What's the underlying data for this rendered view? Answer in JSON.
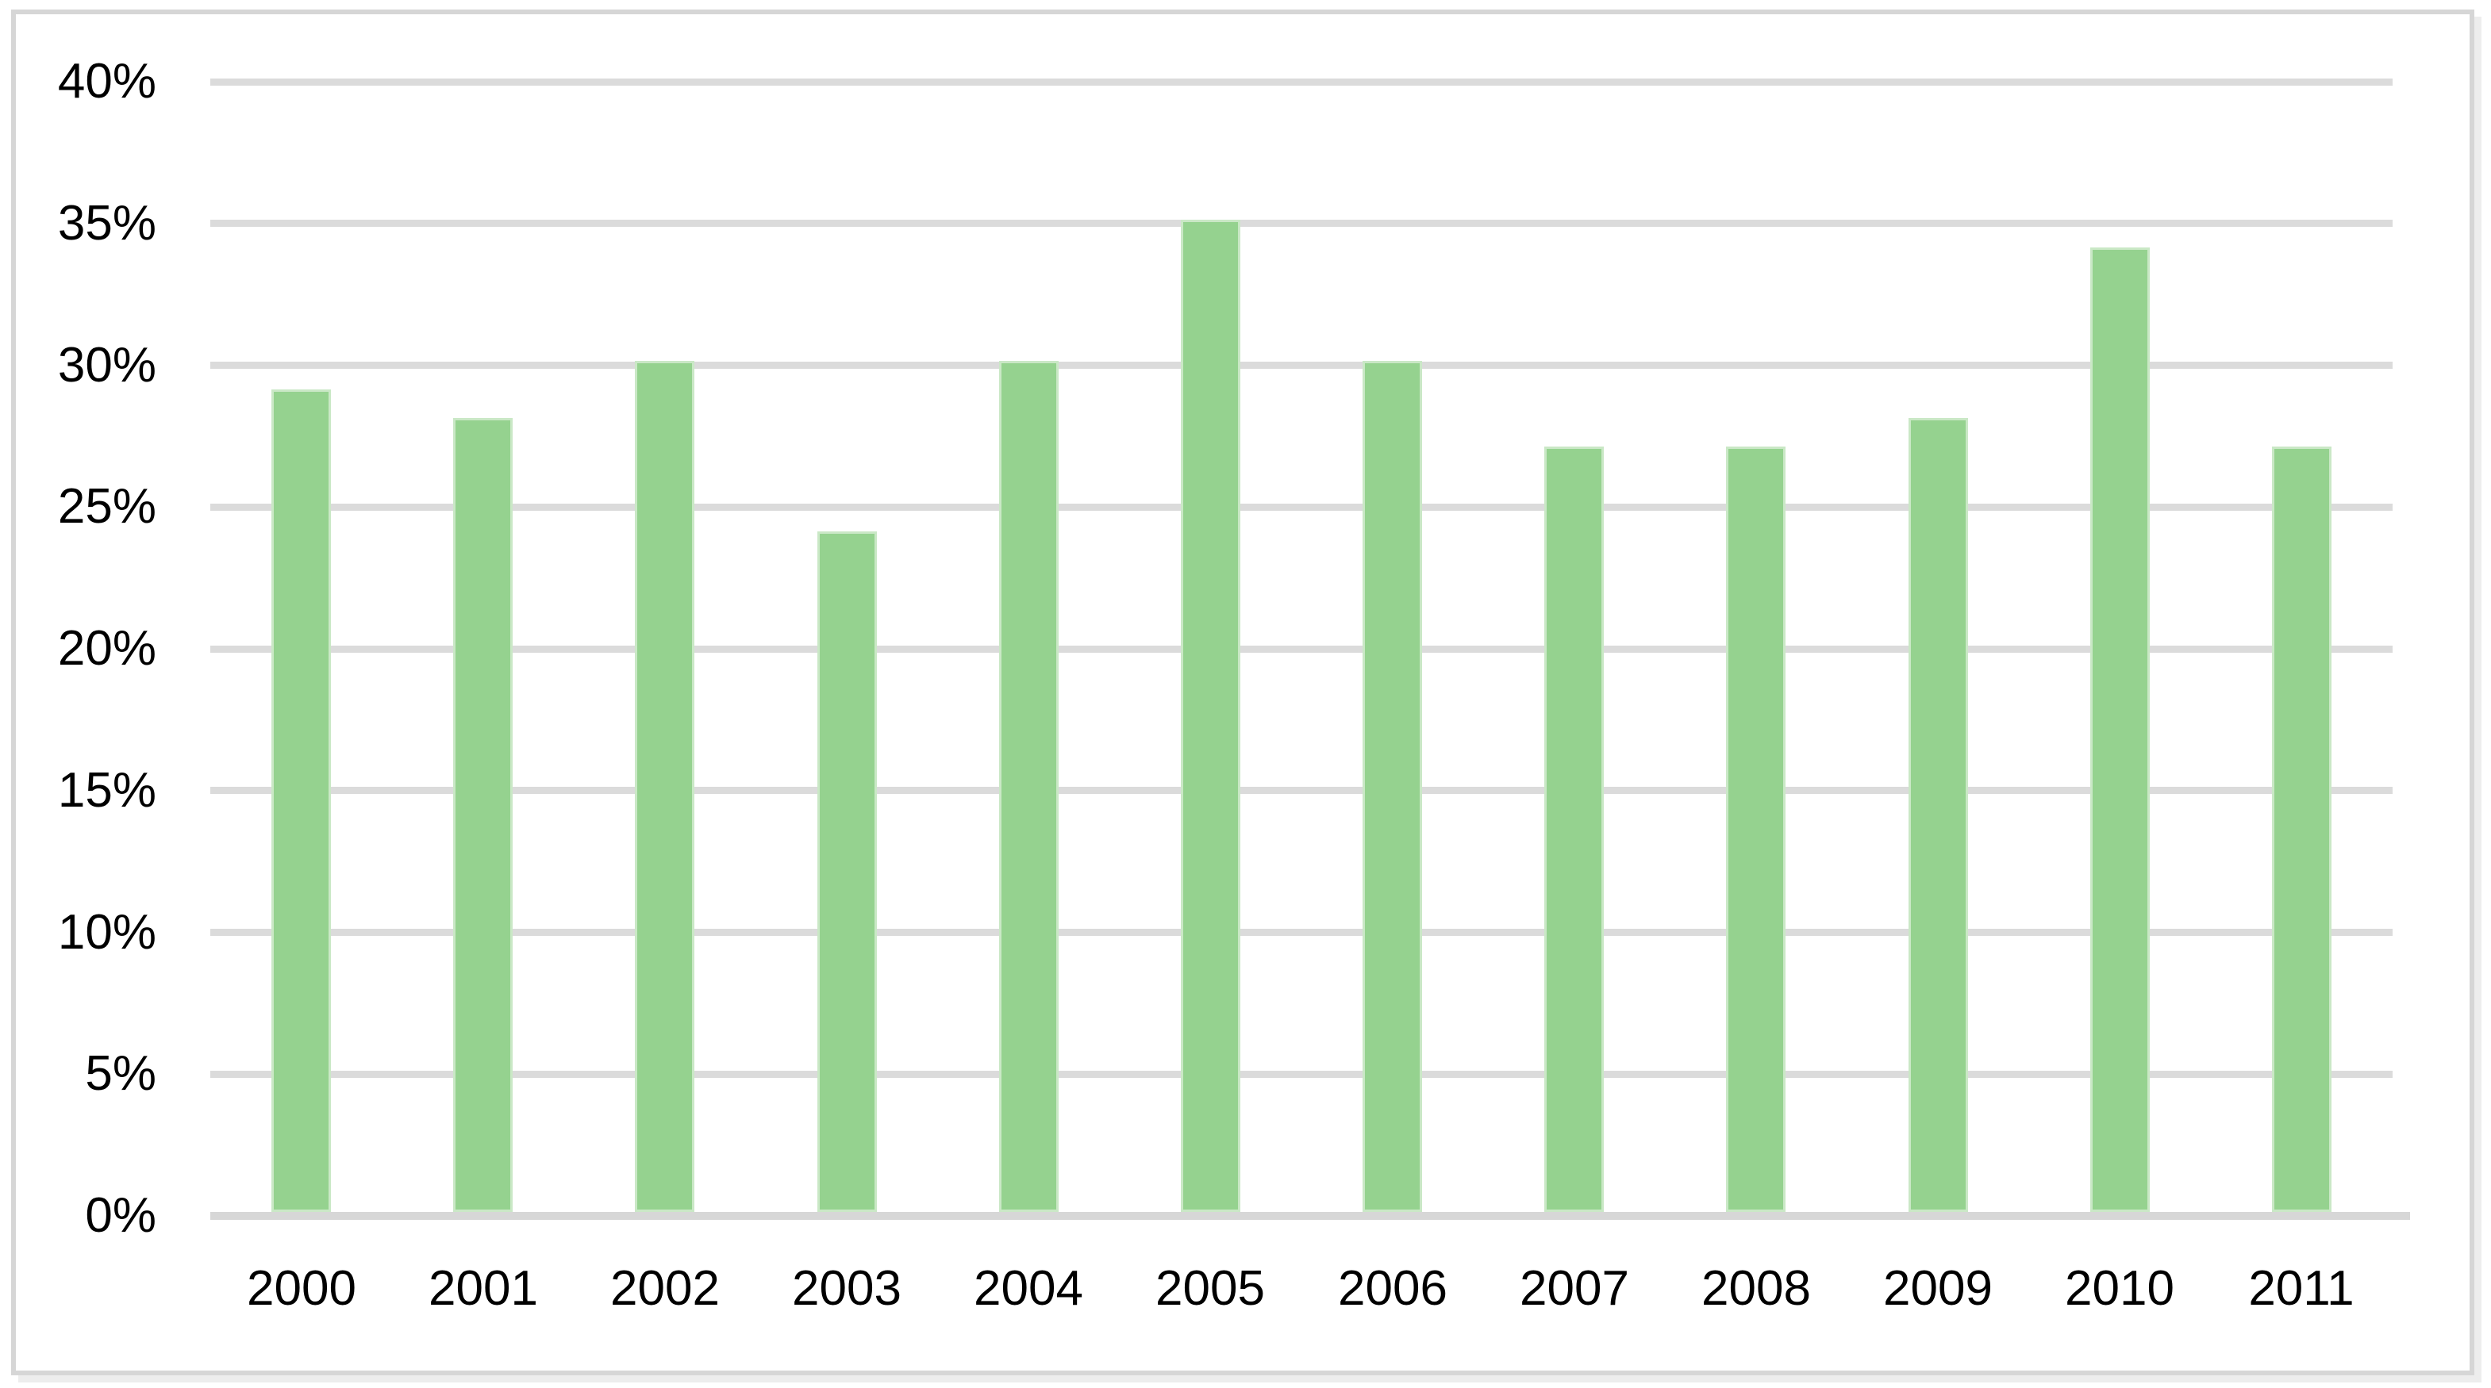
{
  "chart_data": {
    "type": "bar",
    "title": "",
    "xlabel": "",
    "ylabel": "",
    "categories": [
      "2000",
      "2001",
      "2002",
      "2003",
      "2004",
      "2005",
      "2006",
      "2007",
      "2008",
      "2009",
      "2010",
      "2011"
    ],
    "values": [
      29,
      28,
      30,
      24,
      30,
      35,
      30,
      27,
      27,
      28,
      34,
      27
    ],
    "value_unit": "percent",
    "ylim": [
      0,
      40
    ],
    "ytick_step": 5,
    "ytick_labels": [
      "0%",
      "5%",
      "10%",
      "15%",
      "20%",
      "25%",
      "30%",
      "35%",
      "40%"
    ],
    "grid": "horizontal",
    "legend": "none",
    "colors": {
      "bar_fill": "#95D28F",
      "bar_edge": "#CAE8C6",
      "gridline": "#DBDBDB",
      "axis_line": "#D7D7D7",
      "frame_border": "#D6D6D6",
      "frame_shadow": "#EDEDED",
      "text": "#000000",
      "background": "#FFFFFF"
    }
  }
}
